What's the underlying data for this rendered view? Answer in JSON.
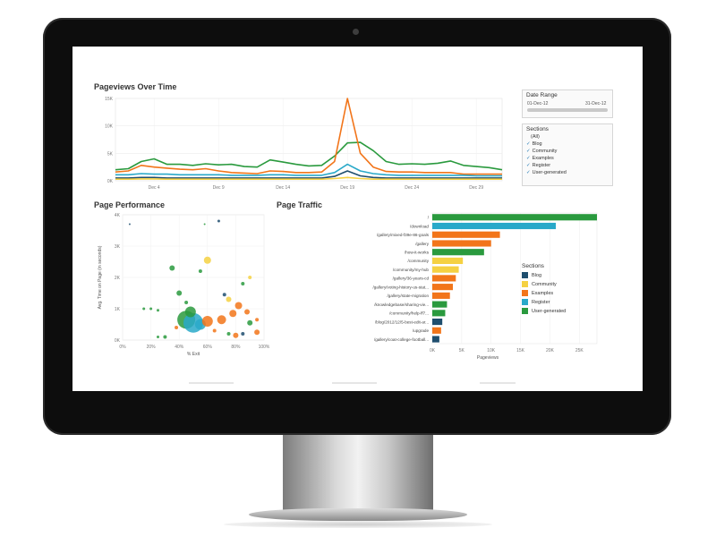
{
  "dashboard": {
    "pageviews_title": "Pageviews Over Time",
    "performance_title": "Page Performance",
    "traffic_title": "Page Traffic"
  },
  "filters": {
    "date_range": {
      "label": "Date Range",
      "start": "01-Dec-12",
      "end": "31-Dec-12"
    },
    "sections": {
      "label": "Sections",
      "all_label": "(All)",
      "items": [
        "Blog",
        "Community",
        "Examples",
        "Register",
        "User-generated"
      ]
    }
  },
  "traffic_legend": {
    "title": "Sections",
    "items": [
      {
        "label": "Blog",
        "color": "#1f4e6e"
      },
      {
        "label": "Community",
        "color": "#f5d142"
      },
      {
        "label": "Examples",
        "color": "#f2751a"
      },
      {
        "label": "Register",
        "color": "#29a9c9"
      },
      {
        "label": "User-generated",
        "color": "#2a9a3e"
      }
    ]
  },
  "chart_data": [
    {
      "type": "line",
      "title": "Pageviews Over Time",
      "xlabel": "",
      "ylabel": "",
      "x_ticks": [
        "Dec 4",
        "Dec 9",
        "Dec 14",
        "Dec 19",
        "Dec 24",
        "Dec 29"
      ],
      "y_ticks": [
        "0K",
        "5K",
        "10K",
        "15K"
      ],
      "ylim": [
        0,
        15000
      ],
      "x": [
        1,
        2,
        3,
        4,
        5,
        6,
        7,
        8,
        9,
        10,
        11,
        12,
        13,
        14,
        15,
        16,
        17,
        18,
        19,
        20,
        21,
        22,
        23,
        24,
        25,
        26,
        27,
        28,
        29,
        30,
        31
      ],
      "series": [
        {
          "color": "#2a9a3e",
          "values": [
            2000,
            2200,
            3500,
            4000,
            3000,
            3000,
            2800,
            3100,
            2900,
            3000,
            2600,
            2500,
            3800,
            3400,
            3000,
            2700,
            2800,
            4500,
            6900,
            7000,
            5500,
            3500,
            3000,
            3100,
            3000,
            3200,
            3600,
            2800,
            2600,
            2400,
            2000
          ]
        },
        {
          "color": "#f2751a",
          "values": [
            1600,
            1800,
            2800,
            2500,
            2300,
            2100,
            2000,
            2200,
            1800,
            1500,
            1400,
            1300,
            1800,
            1700,
            1500,
            1500,
            1600,
            3500,
            15000,
            5000,
            2500,
            1700,
            1600,
            1600,
            1500,
            1500,
            1500,
            1200,
            1200,
            1200,
            1200
          ]
        },
        {
          "color": "#29a9c9",
          "values": [
            1100,
            1100,
            1300,
            1200,
            1200,
            1100,
            1100,
            1100,
            1100,
            1000,
            1000,
            1000,
            1100,
            1100,
            1000,
            1000,
            1000,
            1500,
            3000,
            1800,
            1300,
            1100,
            1000,
            1000,
            1000,
            1000,
            1000,
            1000,
            900,
            900,
            900
          ]
        },
        {
          "color": "#1f4e6e",
          "values": [
            500,
            500,
            600,
            600,
            500,
            500,
            500,
            500,
            500,
            500,
            500,
            500,
            500,
            500,
            500,
            500,
            500,
            800,
            1800,
            900,
            600,
            500,
            500,
            500,
            500,
            500,
            500,
            500,
            500,
            500,
            500
          ]
        },
        {
          "color": "#f5d142",
          "values": [
            300,
            300,
            350,
            350,
            300,
            300,
            300,
            300,
            300,
            300,
            300,
            300,
            300,
            300,
            300,
            300,
            300,
            400,
            600,
            400,
            300,
            300,
            300,
            300,
            300,
            300,
            300,
            300,
            300,
            300,
            300
          ]
        }
      ]
    },
    {
      "type": "scatter",
      "title": "Page Performance",
      "xlabel": "% Exit",
      "ylabel": "Avg. Time on Page (in seconds)",
      "x_ticks": [
        "0%",
        "20%",
        "40%",
        "60%",
        "80%",
        "100%"
      ],
      "y_ticks": [
        "0K",
        "1K",
        "2K",
        "3K",
        "4K"
      ],
      "xlim": [
        0,
        100
      ],
      "ylim": [
        0,
        4000
      ],
      "points": [
        {
          "x": 45,
          "y": 650,
          "r": 10,
          "color": "#2a9a3e"
        },
        {
          "x": 50,
          "y": 550,
          "r": 11,
          "color": "#29a9c9"
        },
        {
          "x": 48,
          "y": 900,
          "r": 6,
          "color": "#2a9a3e"
        },
        {
          "x": 55,
          "y": 500,
          "r": 6,
          "color": "#29a9c9"
        },
        {
          "x": 60,
          "y": 600,
          "r": 6,
          "color": "#f2751a"
        },
        {
          "x": 70,
          "y": 650,
          "r": 5,
          "color": "#f2751a"
        },
        {
          "x": 78,
          "y": 850,
          "r": 4,
          "color": "#f2751a"
        },
        {
          "x": 75,
          "y": 1300,
          "r": 3,
          "color": "#f5d142"
        },
        {
          "x": 82,
          "y": 1100,
          "r": 4,
          "color": "#f2751a"
        },
        {
          "x": 88,
          "y": 900,
          "r": 3,
          "color": "#f2751a"
        },
        {
          "x": 90,
          "y": 550,
          "r": 3,
          "color": "#2a9a3e"
        },
        {
          "x": 95,
          "y": 250,
          "r": 3,
          "color": "#f2751a"
        },
        {
          "x": 80,
          "y": 150,
          "r": 3,
          "color": "#f2751a"
        },
        {
          "x": 65,
          "y": 300,
          "r": 2,
          "color": "#f2751a"
        },
        {
          "x": 60,
          "y": 2550,
          "r": 4,
          "color": "#f5d142"
        },
        {
          "x": 35,
          "y": 2300,
          "r": 3,
          "color": "#2a9a3e"
        },
        {
          "x": 40,
          "y": 1500,
          "r": 3,
          "color": "#2a9a3e"
        },
        {
          "x": 45,
          "y": 1200,
          "r": 2,
          "color": "#2a9a3e"
        },
        {
          "x": 30,
          "y": 100,
          "r": 2,
          "color": "#2a9a3e"
        },
        {
          "x": 15,
          "y": 1000,
          "r": 1.5,
          "color": "#2a9a3e"
        },
        {
          "x": 20,
          "y": 1000,
          "r": 1.5,
          "color": "#2a9a3e"
        },
        {
          "x": 25,
          "y": 950,
          "r": 1.5,
          "color": "#2a9a3e"
        },
        {
          "x": 72,
          "y": 1450,
          "r": 2,
          "color": "#1f4e6e"
        },
        {
          "x": 85,
          "y": 1800,
          "r": 2,
          "color": "#2a9a3e"
        },
        {
          "x": 90,
          "y": 2000,
          "r": 2,
          "color": "#f5d142"
        },
        {
          "x": 55,
          "y": 2200,
          "r": 2,
          "color": "#2a9a3e"
        },
        {
          "x": 68,
          "y": 3800,
          "r": 1.5,
          "color": "#1f4e6e"
        },
        {
          "x": 5,
          "y": 3700,
          "r": 1,
          "color": "#1f4e6e"
        },
        {
          "x": 58,
          "y": 3700,
          "r": 1,
          "color": "#2a9a3e"
        },
        {
          "x": 95,
          "y": 650,
          "r": 2,
          "color": "#f2751a"
        },
        {
          "x": 85,
          "y": 200,
          "r": 2,
          "color": "#1f4e6e"
        },
        {
          "x": 75,
          "y": 200,
          "r": 2,
          "color": "#2a9a3e"
        },
        {
          "x": 38,
          "y": 400,
          "r": 2,
          "color": "#f2751a"
        },
        {
          "x": 25,
          "y": 100,
          "r": 1.5,
          "color": "#2a9a3e"
        }
      ]
    },
    {
      "type": "bar",
      "orientation": "horizontal",
      "title": "Page Traffic",
      "xlabel": "Pageviews",
      "ylabel": "",
      "x_ticks": [
        "0K",
        "5K",
        "10K",
        "15K",
        "20K",
        "25K"
      ],
      "xlim": [
        0,
        28000
      ],
      "categories": [
        "/",
        "/download",
        "/gallery/mixed-f39e-86-goals",
        "/gallery",
        "/how-it-works",
        "/community",
        "/community/my-hub",
        "/gallery/36-years-cd",
        "/gallery/voting-history-us-stat...",
        "/gallery/state-migration",
        "/knowledgebase/sharing-vie...",
        "/community/help-ff7...",
        "/blog/2012/12/5-best-edit-ar...",
        "/upgrade",
        "/gallery/coat-college-football..."
      ],
      "values": [
        28000,
        21000,
        11500,
        10000,
        8800,
        5200,
        4500,
        4000,
        3500,
        3000,
        2500,
        2200,
        1700,
        1500,
        1200
      ],
      "colors": [
        "#2a9a3e",
        "#29a9c9",
        "#f2751a",
        "#f2751a",
        "#2a9a3e",
        "#f5d142",
        "#f5d142",
        "#f2751a",
        "#f2751a",
        "#f2751a",
        "#2a9a3e",
        "#2a9a3e",
        "#1f4e6e",
        "#f2751a",
        "#1f4e6e"
      ]
    }
  ]
}
